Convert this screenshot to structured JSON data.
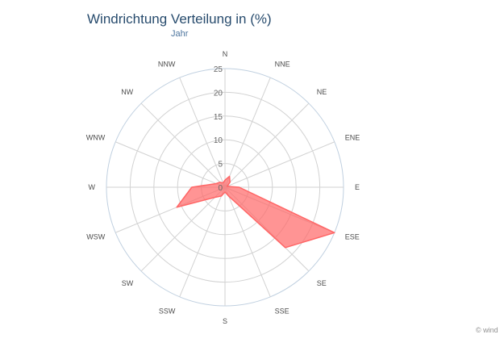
{
  "title": "Windrichtung Verteilung in (%)",
  "subtitle": "Jahr",
  "credit": "© wind",
  "chart_data": {
    "type": "radar",
    "title": "Windrichtung Verteilung in (%)",
    "subtitle": "Jahr",
    "categories": [
      "N",
      "NNE",
      "NE",
      "ENE",
      "E",
      "ESE",
      "SE",
      "SSE",
      "S",
      "SSW",
      "SW",
      "WSW",
      "W",
      "WNW",
      "NW",
      "NNW"
    ],
    "series": [
      {
        "values": [
          1.5,
          2.5,
          1.5,
          0.5,
          3,
          25,
          18,
          2,
          1,
          2,
          3,
          11,
          7,
          2,
          1.5,
          1
        ],
        "color": "#ff6666"
      }
    ],
    "radial_ticks": [
      "0",
      "5",
      "10",
      "15",
      "20",
      "25"
    ],
    "rlim": [
      0,
      25
    ],
    "grid": true,
    "colors": {
      "grid": "#d2d2d2",
      "axis": "#c0d0e0",
      "fill": "#ff6666",
      "title": "#274b6d"
    }
  }
}
